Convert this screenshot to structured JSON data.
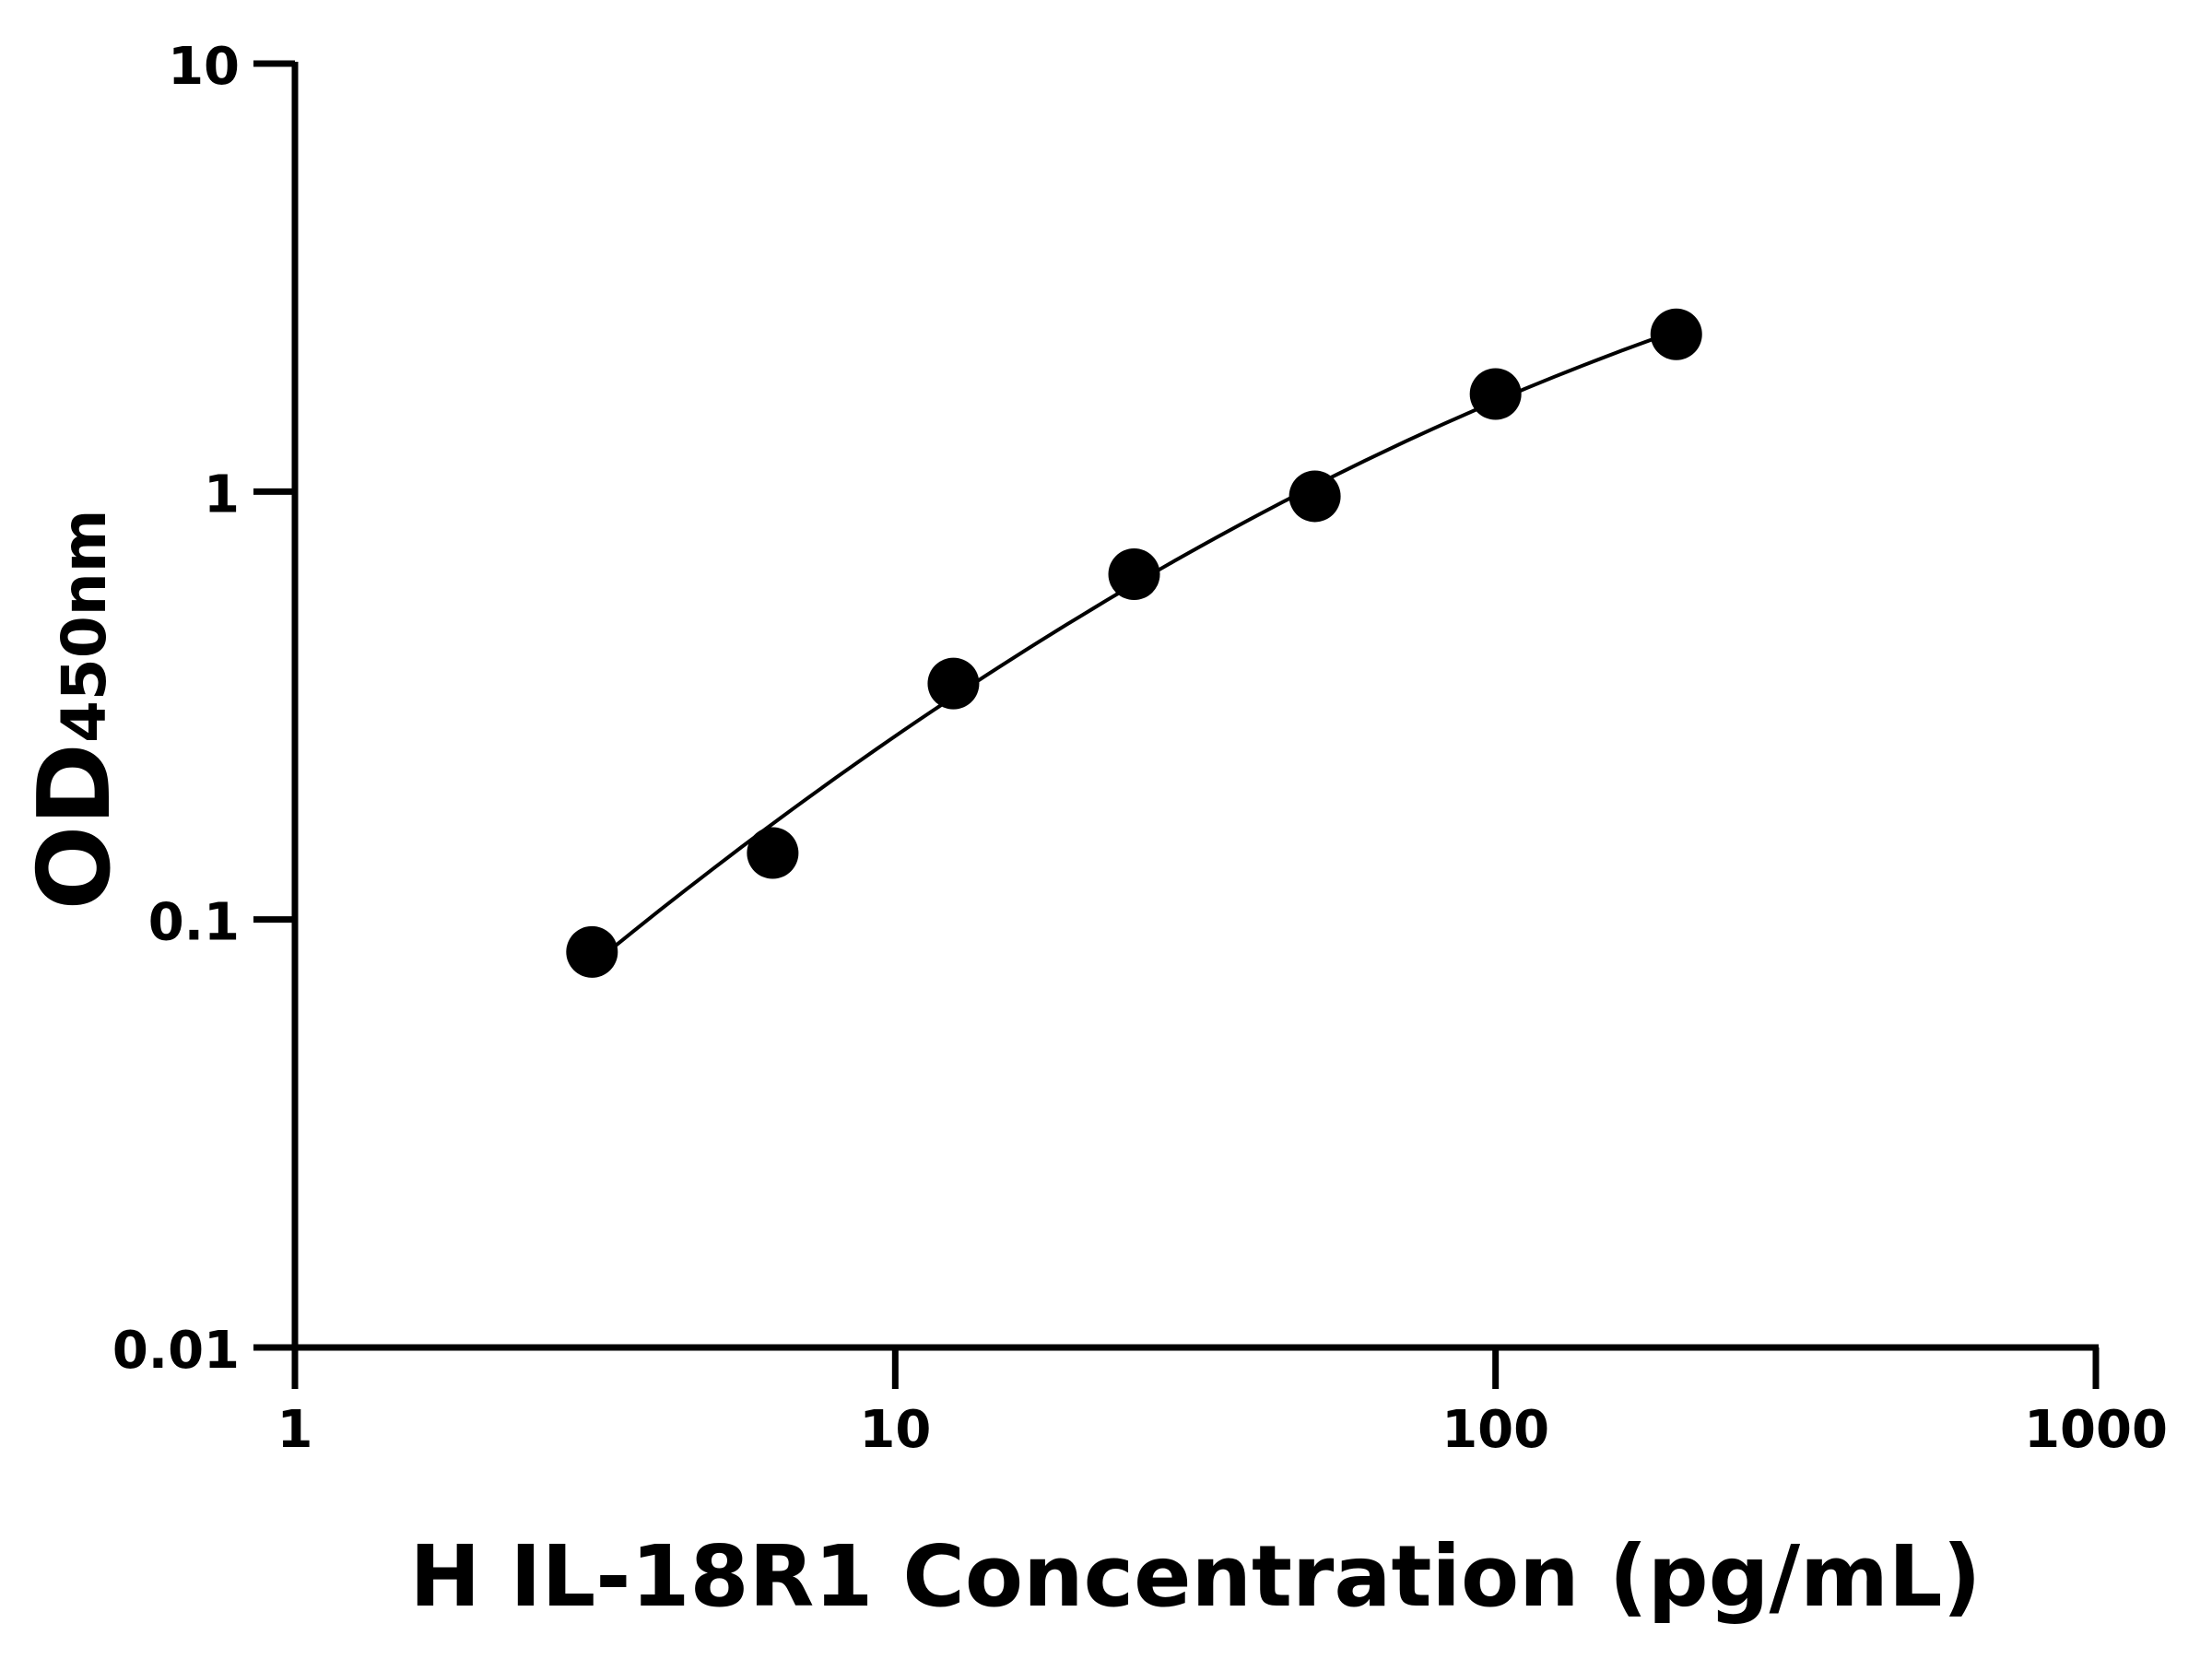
{
  "chart_data": {
    "type": "scatter",
    "title": "",
    "xlabel": "H IL-18R1 Concentration (pg/mL)",
    "ylabel_main": "OD",
    "ylabel_sub": "450nm",
    "x_scale": "log",
    "y_scale": "log",
    "xlim": [
      1,
      1000
    ],
    "ylim": [
      0.01,
      10
    ],
    "x_ticks": [
      1,
      10,
      100,
      1000
    ],
    "x_tick_labels": [
      "1",
      "10",
      "100",
      "1000"
    ],
    "y_ticks": [
      0.01,
      0.1,
      1,
      10
    ],
    "y_tick_labels": [
      "0.01",
      "0.1",
      "1",
      "10"
    ],
    "grid": false,
    "legend": "none",
    "fit_curve": true,
    "colors": {
      "points": "#000000",
      "curve": "#000000",
      "axes": "#000000"
    },
    "series": [
      {
        "x": [
          3.125,
          6.25,
          12.5,
          25,
          50,
          100,
          200
        ],
        "y": [
          0.084,
          0.143,
          0.356,
          0.641,
          0.975,
          1.69,
          2.33
        ]
      }
    ]
  }
}
